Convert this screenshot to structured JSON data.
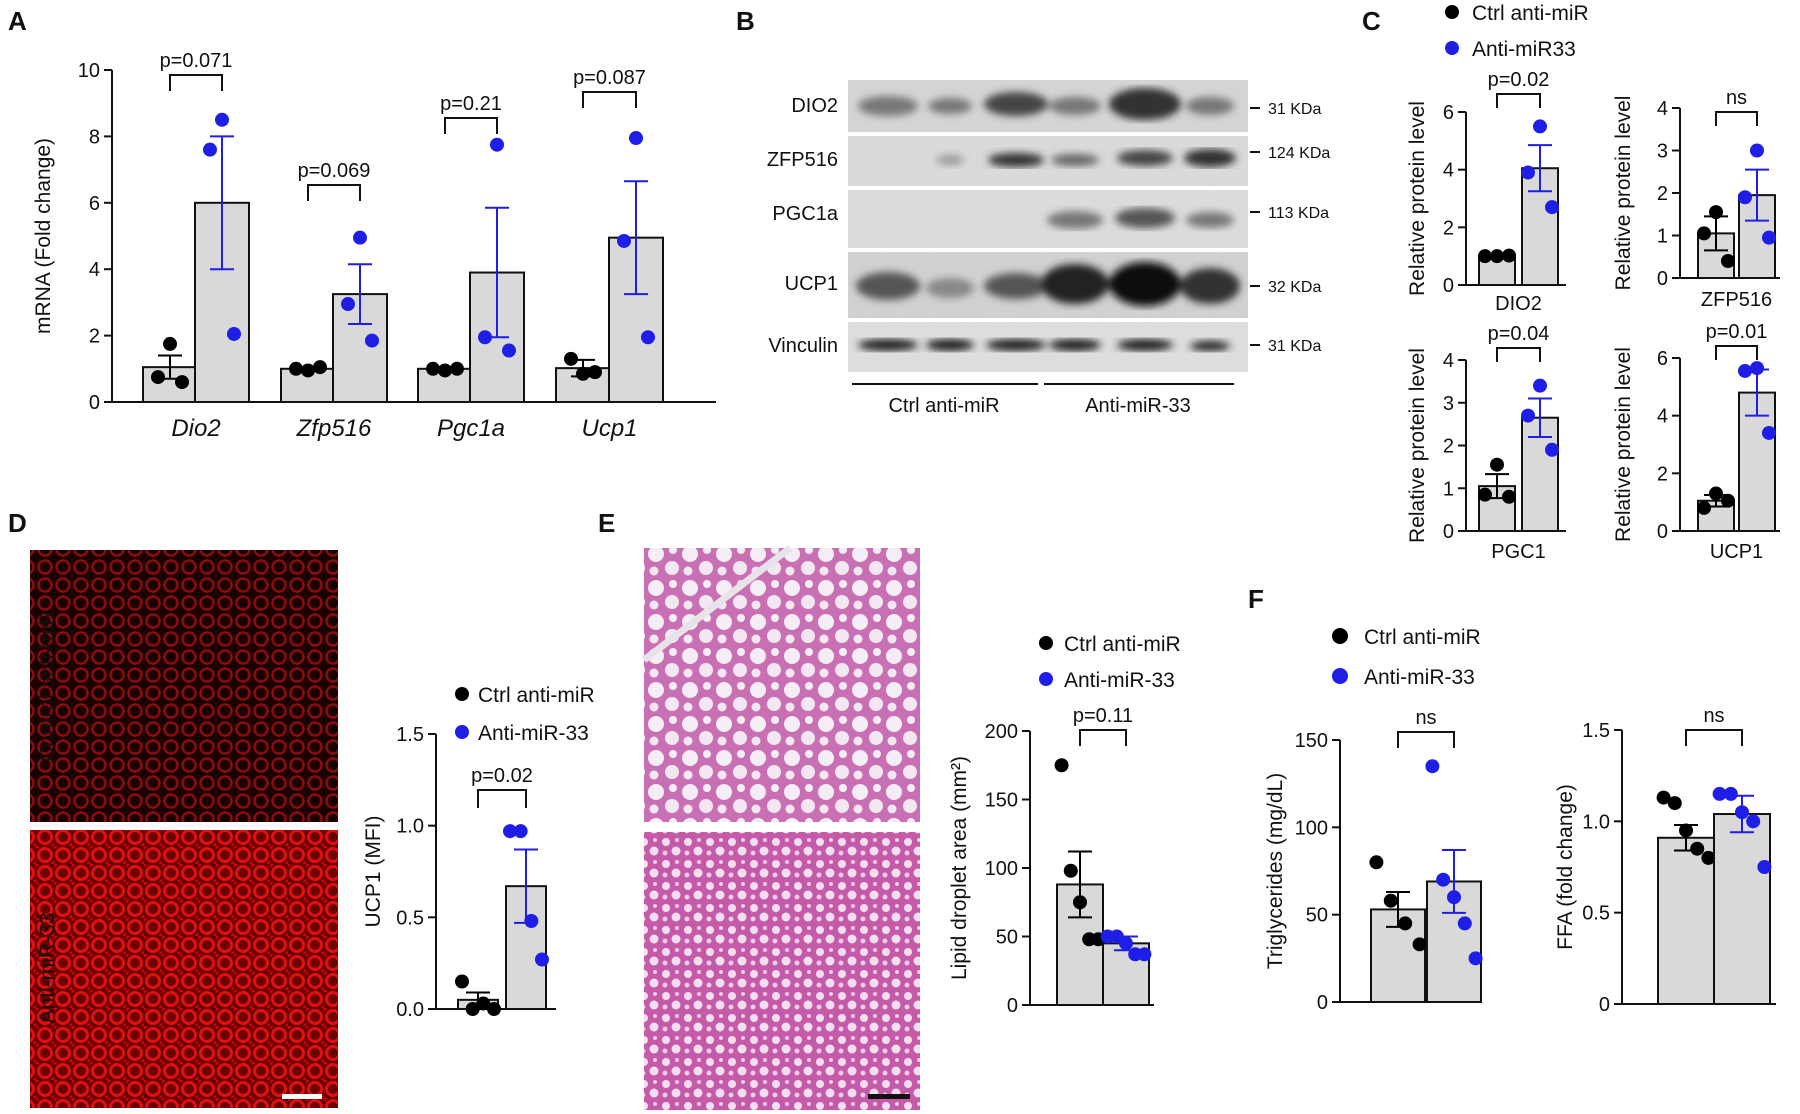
{
  "panels": {
    "A": "A",
    "B": "B",
    "C": "C",
    "D": "D",
    "E": "E",
    "F": "F"
  },
  "colors": {
    "ctrl": "#000000",
    "treat": "#1e1ee6",
    "bar": "#d9d9d9"
  },
  "legends": {
    "C": {
      "ctrl": "Ctrl anti-miR",
      "treat": "Anti-miR33"
    },
    "D": {
      "ctrl": "Ctrl anti-miR",
      "treat": "Anti-miR-33"
    },
    "E": {
      "ctrl": "Ctrl anti-miR",
      "treat": "Anti-miR-33"
    },
    "F": {
      "ctrl": "Ctrl anti-miR",
      "treat": "Anti-miR-33"
    }
  },
  "blot": {
    "bands": [
      {
        "label": "DIO2",
        "kda": "31 KDa"
      },
      {
        "label": "ZFP516",
        "kda": "124 KDa"
      },
      {
        "label": "PGC1a",
        "kda": "113 KDa"
      },
      {
        "label": "UCP1",
        "kda": "32 KDa"
      },
      {
        "label": "Vinculin",
        "kda": "31 KDa"
      }
    ],
    "groups": [
      "Ctrl anti-miR",
      "Anti-miR-33"
    ]
  },
  "images": {
    "D_labels": [
      "Control anti-miR",
      "Anti-miR-33"
    ],
    "D_stain": "UCP1 immunofluorescence (red)",
    "E_stain": "H&E staining (pink)"
  },
  "chart_data": [
    {
      "id": "A",
      "type": "bar",
      "categories": [
        "Dio2",
        "Zfp516",
        "Pgc1a",
        "Ucp1"
      ],
      "ylabel": "mRNA (Fold change)",
      "ylim": [
        0,
        10
      ],
      "yticks": [
        0,
        2,
        4,
        6,
        8,
        10
      ],
      "series": [
        {
          "name": "Ctrl anti-miR",
          "values": [
            1.05,
            1.0,
            1.0,
            1.02
          ],
          "sem": [
            0.35,
            0.05,
            0.04,
            0.25
          ],
          "points": [
            [
              1.75,
              0.75,
              0.6
            ],
            [
              0.95,
              1.0,
              1.05
            ],
            [
              0.95,
              1.0,
              1.0
            ],
            [
              0.85,
              1.3,
              0.9
            ]
          ]
        },
        {
          "name": "Anti-miR-33",
          "values": [
            6.0,
            3.25,
            3.9,
            4.95
          ],
          "sem": [
            2.0,
            0.9,
            1.95,
            1.7
          ],
          "points": [
            [
              8.5,
              7.6,
              2.05
            ],
            [
              4.95,
              2.95,
              1.85
            ],
            [
              7.75,
              1.95,
              1.55
            ],
            [
              7.95,
              4.85,
              1.95
            ]
          ]
        }
      ],
      "annotations": [
        "p=0.071",
        "p=0.069",
        "p=0.21",
        "p=0.087"
      ]
    },
    {
      "id": "C1",
      "type": "bar",
      "categories": [
        "DIO2"
      ],
      "xlabel": "DIO2",
      "ylabel": "Relative protein level",
      "ylim": [
        0,
        6
      ],
      "yticks": [
        0,
        2,
        4,
        6
      ],
      "series": [
        {
          "name": "Ctrl anti-miR",
          "values": [
            1.0
          ],
          "sem": [
            0.03
          ],
          "points": [
            [
              1.0,
              1.0,
              1.02
            ]
          ]
        },
        {
          "name": "Anti-miR33",
          "values": [
            4.05
          ],
          "sem": [
            0.8
          ],
          "points": [
            [
              5.5,
              3.9,
              2.7
            ]
          ]
        }
      ],
      "annotations": [
        "p=0.02"
      ]
    },
    {
      "id": "C2",
      "type": "bar",
      "categories": [
        "ZFP516"
      ],
      "xlabel": "ZFP516",
      "ylabel": "Relative protein level",
      "ylim": [
        0,
        4
      ],
      "yticks": [
        0,
        1,
        2,
        3,
        4
      ],
      "series": [
        {
          "name": "Ctrl anti-miR",
          "values": [
            1.05
          ],
          "sem": [
            0.4
          ],
          "points": [
            [
              1.55,
              1.05,
              0.4
            ]
          ]
        },
        {
          "name": "Anti-miR33",
          "values": [
            1.95
          ],
          "sem": [
            0.6
          ],
          "points": [
            [
              3.0,
              1.9,
              0.95
            ]
          ]
        }
      ],
      "annotations": [
        "ns"
      ]
    },
    {
      "id": "C3",
      "type": "bar",
      "categories": [
        "PGC1"
      ],
      "xlabel": "PGC1",
      "ylabel": "Relative protein level",
      "ylim": [
        0,
        4
      ],
      "yticks": [
        0,
        1,
        2,
        3,
        4
      ],
      "series": [
        {
          "name": "Ctrl anti-miR",
          "values": [
            1.05
          ],
          "sem": [
            0.28
          ],
          "points": [
            [
              1.55,
              0.85,
              0.8
            ]
          ]
        },
        {
          "name": "Anti-miR33",
          "values": [
            2.65
          ],
          "sem": [
            0.45
          ],
          "points": [
            [
              3.4,
              2.7,
              1.9
            ]
          ]
        }
      ],
      "annotations": [
        "p=0.04"
      ]
    },
    {
      "id": "C4",
      "type": "bar",
      "categories": [
        "UCP1"
      ],
      "xlabel": "UCP1",
      "ylabel": "Relative protein level",
      "ylim": [
        0,
        6
      ],
      "yticks": [
        0,
        2,
        4,
        6
      ],
      "series": [
        {
          "name": "Ctrl anti-miR",
          "values": [
            1.05
          ],
          "sem": [
            0.2
          ],
          "points": [
            [
              1.3,
              0.8,
              1.05
            ]
          ]
        },
        {
          "name": "Anti-miR33",
          "values": [
            4.8
          ],
          "sem": [
            0.8
          ],
          "points": [
            [
              5.65,
              5.55,
              3.4
            ]
          ]
        }
      ],
      "annotations": [
        "p=0.01"
      ]
    },
    {
      "id": "D",
      "type": "bar",
      "categories": [
        ""
      ],
      "ylabel": "UCP1 (MFI)",
      "ylim": [
        0,
        1.5
      ],
      "yticks": [
        "0.0",
        "0.5",
        "1.0",
        "1.5"
      ],
      "series": [
        {
          "name": "Ctrl anti-miR",
          "values": [
            0.05
          ],
          "sem": [
            0.04
          ],
          "points": [
            [
              0.15,
              0.0,
              0.03,
              0.0
            ]
          ]
        },
        {
          "name": "Anti-miR-33",
          "values": [
            0.67
          ],
          "sem": [
            0.2
          ],
          "points": [
            [
              0.97,
              0.97,
              0.48,
              0.27
            ]
          ]
        }
      ],
      "annotations": [
        "p=0.02"
      ]
    },
    {
      "id": "E",
      "type": "bar",
      "categories": [
        ""
      ],
      "ylabel": "Lipid droplet area (mm²)",
      "ylim": [
        0,
        200
      ],
      "yticks": [
        0,
        50,
        100,
        150,
        200
      ],
      "series": [
        {
          "name": "Ctrl anti-miR",
          "values": [
            88
          ],
          "sem": [
            24
          ],
          "points": [
            [
              175,
              98,
              75,
              48,
              48
            ]
          ]
        },
        {
          "name": "Anti-miR-33",
          "values": [
            45
          ],
          "sem": [
            5
          ],
          "points": [
            [
              50,
              50,
              45,
              37,
              37
            ]
          ]
        }
      ],
      "annotations": [
        "p=0.11"
      ]
    },
    {
      "id": "F1",
      "type": "bar",
      "categories": [
        ""
      ],
      "ylabel": "Triglycerides (mg/dL)",
      "ylim": [
        0,
        150
      ],
      "yticks": [
        0,
        50,
        100,
        150
      ],
      "series": [
        {
          "name": "Ctrl anti-miR",
          "values": [
            53
          ],
          "sem": [
            10
          ],
          "points": [
            [
              80,
              58,
              45,
              33
            ]
          ]
        },
        {
          "name": "Anti-miR-33",
          "values": [
            69
          ],
          "sem": [
            18
          ],
          "points": [
            [
              135,
              70,
              60,
              45,
              25
            ]
          ]
        }
      ],
      "annotations": [
        "ns"
      ]
    },
    {
      "id": "F2",
      "type": "bar",
      "categories": [
        ""
      ],
      "ylabel": "FFA (fold change)",
      "ylim": [
        0,
        1.5
      ],
      "yticks": [
        "0",
        "0.5",
        "1.0",
        "1.5"
      ],
      "series": [
        {
          "name": "Ctrl anti-miR",
          "values": [
            0.91
          ],
          "sem": [
            0.07
          ],
          "points": [
            [
              1.13,
              1.1,
              0.95,
              0.85,
              0.8
            ]
          ]
        },
        {
          "name": "Anti-miR-33",
          "values": [
            1.04
          ],
          "sem": [
            0.1
          ],
          "points": [
            [
              1.15,
              1.15,
              1.05,
              1.0,
              0.75
            ]
          ]
        }
      ],
      "annotations": [
        "ns"
      ]
    }
  ]
}
